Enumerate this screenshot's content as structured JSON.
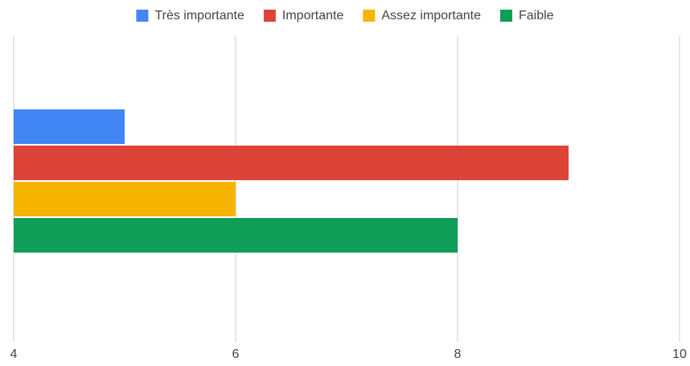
{
  "chart_data": {
    "type": "bar",
    "orientation": "horizontal",
    "categories": [
      null
    ],
    "series": [
      {
        "name": "Très importante",
        "color": "#4285f4",
        "values": [
          5
        ]
      },
      {
        "name": "Importante",
        "color": "#db4437",
        "values": [
          9
        ]
      },
      {
        "name": "Assez importante",
        "color": "#f4b400",
        "values": [
          6
        ]
      },
      {
        "name": "Faible",
        "color": "#0f9d58",
        "values": [
          8
        ]
      }
    ],
    "xlim": [
      4,
      10
    ],
    "xticks": [
      4,
      6,
      8,
      10
    ],
    "grid": true,
    "legend": "top"
  }
}
